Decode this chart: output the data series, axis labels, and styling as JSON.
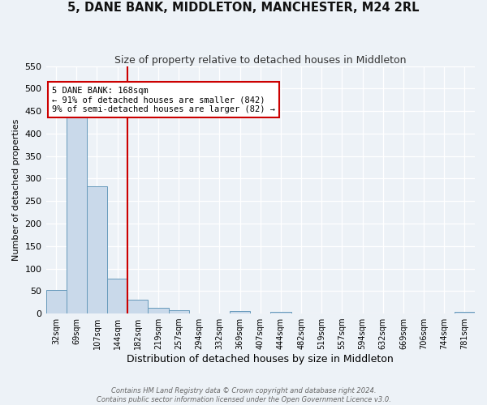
{
  "title": "5, DANE BANK, MIDDLETON, MANCHESTER, M24 2RL",
  "subtitle": "Size of property relative to detached houses in Middleton",
  "xlabel": "Distribution of detached houses by size in Middleton",
  "ylabel": "Number of detached properties",
  "bar_color": "#c9d9ea",
  "bar_edge_color": "#6699bb",
  "bin_labels": [
    "32sqm",
    "69sqm",
    "107sqm",
    "144sqm",
    "182sqm",
    "219sqm",
    "257sqm",
    "294sqm",
    "332sqm",
    "369sqm",
    "407sqm",
    "444sqm",
    "482sqm",
    "519sqm",
    "557sqm",
    "594sqm",
    "632sqm",
    "669sqm",
    "706sqm",
    "744sqm",
    "781sqm"
  ],
  "bar_heights": [
    53,
    455,
    283,
    78,
    30,
    13,
    7,
    0,
    0,
    5,
    0,
    4,
    0,
    0,
    0,
    0,
    0,
    0,
    0,
    0,
    3
  ],
  "ylim": [
    0,
    550
  ],
  "yticks": [
    0,
    50,
    100,
    150,
    200,
    250,
    300,
    350,
    400,
    450,
    500,
    550
  ],
  "property_line_x": 4,
  "property_line_label": "5 DANE BANK: 168sqm",
  "annotation_line1": "← 91% of detached houses are smaller (842)",
  "annotation_line2": "9% of semi-detached houses are larger (82) →",
  "annotation_box_facecolor": "#ffffff",
  "annotation_box_edge_color": "#cc0000",
  "vline_color": "#cc0000",
  "background_color": "#edf2f7",
  "grid_color": "#ffffff",
  "footer_line1": "Contains HM Land Registry data © Crown copyright and database right 2024.",
  "footer_line2": "Contains public sector information licensed under the Open Government Licence v3.0."
}
